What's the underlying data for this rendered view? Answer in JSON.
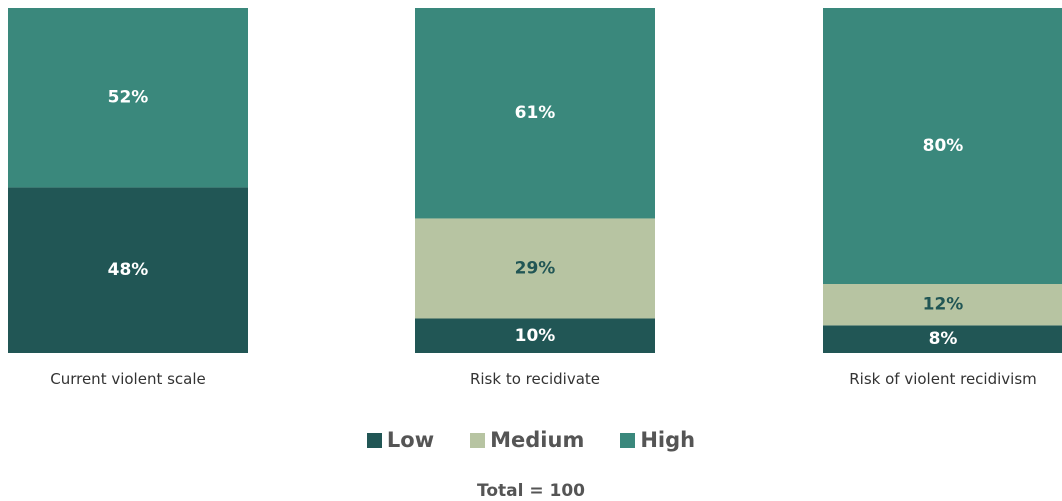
{
  "chart_data": {
    "type": "bar",
    "stacked": true,
    "normalized": true,
    "categories": [
      "Current violent scale",
      "Risk to recidivate",
      "Risk of violent recidivism"
    ],
    "series": [
      {
        "name": "Low",
        "color": "#215655",
        "label_color": "#ffffff",
        "values": [
          48,
          10,
          8
        ]
      },
      {
        "name": "Medium",
        "color": "#b7c4a2",
        "label_color": "#215655",
        "values": [
          0,
          29,
          12
        ]
      },
      {
        "name": "High",
        "color": "#3a887c",
        "label_color": "#ffffff",
        "values": [
          52,
          61,
          80
        ]
      }
    ],
    "value_suffix": "%",
    "ylim": [
      0,
      100
    ],
    "grid": false,
    "legend_position": "bottom",
    "note": "Total = 100"
  }
}
